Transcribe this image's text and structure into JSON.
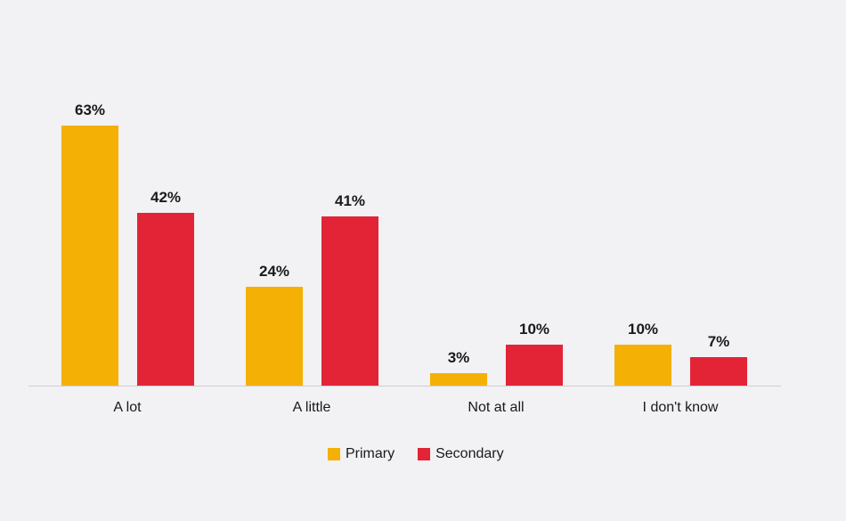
{
  "chart_data": {
    "type": "bar",
    "title": "",
    "xlabel": "",
    "ylabel": "",
    "categories": [
      "A lot",
      "A little",
      "Not at all",
      "I don't know"
    ],
    "series": [
      {
        "name": "Primary",
        "values": [
          63,
          24,
          3,
          10
        ],
        "color": "#f5b005"
      },
      {
        "name": "Secondary",
        "values": [
          42,
          41,
          10,
          7
        ],
        "color": "#e22436"
      }
    ],
    "value_labels": {
      "Primary": [
        "63%",
        "24%",
        "3%",
        "10%"
      ],
      "Secondary": [
        "42%",
        "41%",
        "10%",
        "7%"
      ]
    },
    "ylim": [
      0,
      63
    ],
    "grid": false,
    "legend_position": "bottom"
  }
}
